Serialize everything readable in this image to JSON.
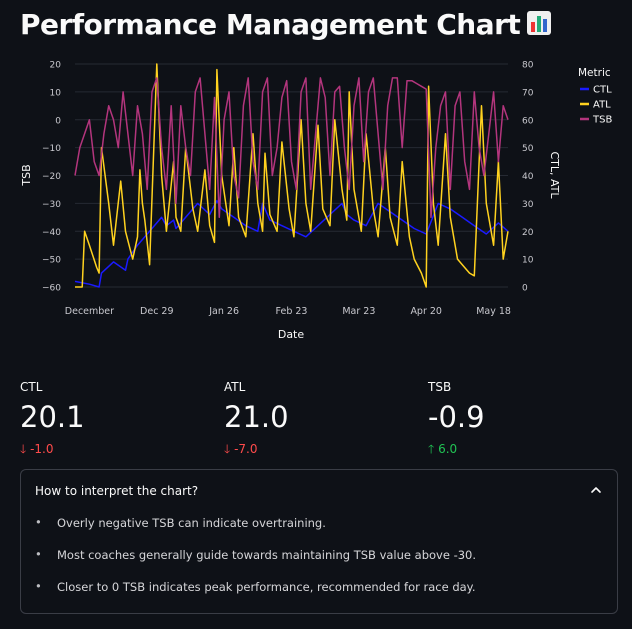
{
  "page": {
    "title": "Performance Management Chart",
    "title_icon": "bar-chart-icon"
  },
  "chart_data": {
    "type": "line",
    "xlabel": "Date",
    "y_left_label": "TSB",
    "y_right_label": "CTL, ATL",
    "y_left_range": [
      -60,
      20
    ],
    "y_right_range": [
      0,
      80
    ],
    "y_left_ticks": [
      "20",
      "10",
      "0",
      "−10",
      "−20",
      "−30",
      "−40",
      "−50",
      "−60"
    ],
    "y_right_ticks": [
      "80",
      "70",
      "60",
      "50",
      "40",
      "30",
      "20",
      "10",
      "0"
    ],
    "x_ticks": [
      "December",
      "Dec 29",
      "Jan 26",
      "Feb 23",
      "Mar 23",
      "Apr 20",
      "May 18"
    ],
    "x_tick_days": [
      0,
      28,
      56,
      84,
      112,
      140,
      168
    ],
    "x_range": [
      -6,
      174
    ],
    "legend_title": "Metric",
    "legend_position": "top-right",
    "series": [
      {
        "name": "CTL",
        "axis": "right",
        "color": "#1a1aff",
        "x": [
          -6,
          0,
          4,
          5,
          10,
          15,
          16,
          20,
          25,
          30,
          32,
          35,
          36,
          40,
          45,
          50,
          53,
          55,
          60,
          65,
          70,
          72,
          75,
          80,
          85,
          90,
          95,
          100,
          105,
          107,
          110,
          115,
          120,
          125,
          130,
          135,
          140,
          145,
          150,
          155,
          160,
          165,
          170,
          174
        ],
        "y": [
          2,
          1,
          0,
          5,
          9,
          6,
          10,
          15,
          20,
          25,
          22,
          24,
          21,
          25,
          30,
          26,
          31,
          28,
          25,
          22,
          20,
          30,
          24,
          22,
          20,
          18,
          22,
          26,
          30,
          26,
          24,
          22,
          30,
          27,
          24,
          21,
          19,
          30,
          28,
          25,
          22,
          19,
          23,
          20
        ]
      },
      {
        "name": "ATL",
        "axis": "right",
        "color": "#ffd21f",
        "x": [
          -6,
          -3,
          -2,
          0,
          3,
          4,
          5,
          8,
          10,
          13,
          15,
          18,
          20,
          21,
          22,
          23,
          25,
          28,
          30,
          32,
          35,
          36,
          38,
          40,
          43,
          45,
          48,
          50,
          52,
          53,
          55,
          58,
          60,
          62,
          65,
          68,
          70,
          72,
          73,
          75,
          78,
          80,
          83,
          85,
          88,
          90,
          92,
          95,
          97,
          100,
          102,
          105,
          107,
          108,
          110,
          113,
          115,
          118,
          120,
          123,
          125,
          128,
          130,
          133,
          135,
          138,
          140,
          141,
          143,
          145,
          148,
          150,
          153,
          155,
          158,
          160,
          163,
          165,
          168,
          170,
          172,
          174
        ],
        "y": [
          0,
          0,
          20,
          15,
          7,
          5,
          50,
          30,
          15,
          38,
          20,
          10,
          18,
          42,
          30,
          24,
          8,
          80,
          40,
          20,
          45,
          25,
          20,
          50,
          28,
          20,
          42,
          22,
          16,
          78,
          40,
          22,
          50,
          25,
          18,
          55,
          30,
          20,
          48,
          26,
          20,
          52,
          28,
          18,
          60,
          30,
          20,
          58,
          28,
          22,
          60,
          35,
          24,
          70,
          35,
          20,
          55,
          28,
          18,
          50,
          25,
          15,
          45,
          18,
          10,
          5,
          0,
          72,
          30,
          15,
          55,
          25,
          10,
          8,
          5,
          4,
          65,
          30,
          15,
          45,
          10,
          20
        ]
      },
      {
        "name": "TSB",
        "axis": "left",
        "color": "#b3357d",
        "x": [
          -6,
          -4,
          -2,
          0,
          2,
          4,
          6,
          8,
          10,
          12,
          14,
          16,
          18,
          20,
          22,
          24,
          26,
          28,
          30,
          32,
          34,
          36,
          38,
          40,
          42,
          44,
          46,
          48,
          50,
          52,
          54,
          56,
          58,
          60,
          62,
          64,
          66,
          68,
          70,
          72,
          74,
          76,
          78,
          80,
          82,
          84,
          86,
          88,
          90,
          92,
          94,
          96,
          98,
          100,
          102,
          104,
          106,
          108,
          110,
          112,
          114,
          116,
          118,
          120,
          122,
          124,
          126,
          128,
          130,
          132,
          134,
          136,
          138,
          140,
          142,
          144,
          146,
          148,
          150,
          152,
          154,
          156,
          158,
          160,
          162,
          164,
          166,
          168,
          170,
          172,
          174
        ],
        "y": [
          -20,
          -10,
          -5,
          0,
          -15,
          -20,
          -5,
          5,
          0,
          -10,
          10,
          -5,
          -20,
          5,
          -5,
          -25,
          10,
          15,
          -10,
          -25,
          5,
          -30,
          5,
          -10,
          -20,
          10,
          15,
          -5,
          -25,
          8,
          -35,
          0,
          10,
          -20,
          -28,
          5,
          15,
          -15,
          -25,
          10,
          15,
          -20,
          -10,
          8,
          14,
          -15,
          -25,
          10,
          15,
          -25,
          -5,
          15,
          8,
          -20,
          10,
          12,
          -10,
          -25,
          5,
          15,
          -15,
          10,
          15,
          -5,
          -25,
          5,
          15,
          15,
          -10,
          14,
          14,
          13,
          12,
          11,
          -35,
          -10,
          5,
          10,
          -25,
          5,
          10,
          -15,
          -25,
          10,
          -10,
          -20,
          -5,
          10,
          -15,
          5,
          0
        ]
      }
    ]
  },
  "metrics": [
    {
      "label": "CTL",
      "value": "20.1",
      "delta": "-1.0",
      "direction": "down"
    },
    {
      "label": "ATL",
      "value": "21.0",
      "delta": "-7.0",
      "direction": "down"
    },
    {
      "label": "TSB",
      "value": "-0.9",
      "delta": "6.0",
      "direction": "up"
    }
  ],
  "expander": {
    "header": "How to interpret the chart?",
    "items": [
      "Overly negative TSB can indicate overtraining.",
      "Most coaches generally guide towards maintaining TSB value above -30.",
      "Closer to 0 TSB indicates peak performance, recommended for race day."
    ]
  }
}
